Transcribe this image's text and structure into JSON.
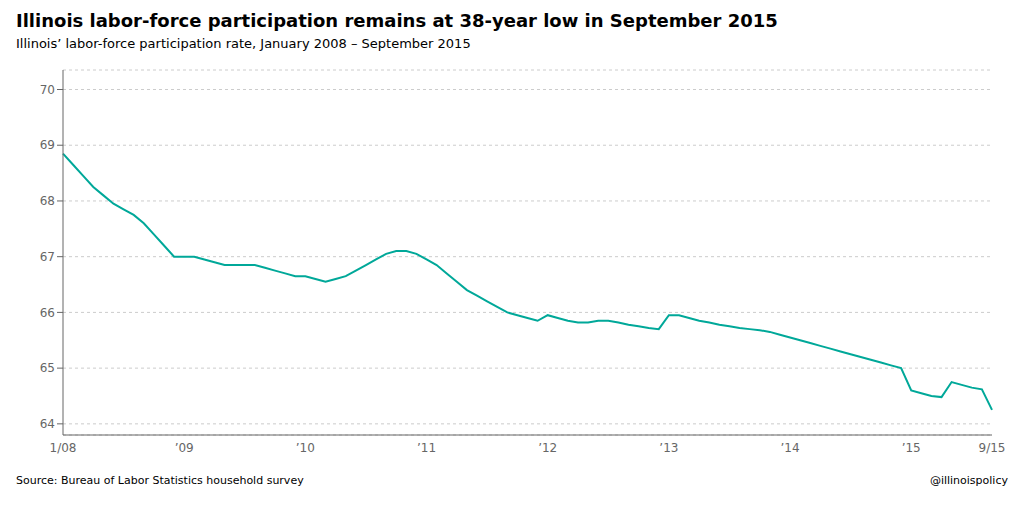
{
  "chart_data": {
    "type": "line",
    "title": "Illinois labor-force participation remains at 38-year low in September 2015",
    "subtitle": "Illinois’ labor-force participation rate, January 2008 – September 2015",
    "annotations": [
      "Source: Bureau of Labor Statistics household survey",
      "@illinoispolicy"
    ],
    "categories": [
      "1/08",
      null,
      null,
      null,
      null,
      null,
      null,
      null,
      null,
      null,
      null,
      null,
      "’09",
      null,
      null,
      null,
      null,
      null,
      null,
      null,
      null,
      null,
      null,
      null,
      "’10",
      null,
      null,
      null,
      null,
      null,
      null,
      null,
      null,
      null,
      null,
      null,
      "’11",
      null,
      null,
      null,
      null,
      null,
      null,
      null,
      null,
      null,
      null,
      null,
      "’12",
      null,
      null,
      null,
      null,
      null,
      null,
      null,
      null,
      null,
      null,
      null,
      "’13",
      null,
      null,
      null,
      null,
      null,
      null,
      null,
      null,
      null,
      null,
      null,
      "’14",
      null,
      null,
      null,
      null,
      null,
      null,
      null,
      null,
      null,
      null,
      null,
      "’15",
      null,
      null,
      null,
      null,
      null,
      null,
      null,
      "9/15"
    ],
    "values": [
      68.85,
      68.65,
      68.45,
      68.25,
      68.1,
      67.95,
      67.85,
      67.75,
      67.6,
      67.4,
      67.2,
      67.0,
      67.0,
      67.0,
      66.95,
      66.9,
      66.85,
      66.85,
      66.85,
      66.85,
      66.8,
      66.75,
      66.7,
      66.65,
      66.65,
      66.6,
      66.55,
      66.6,
      66.65,
      66.75,
      66.85,
      66.95,
      67.05,
      67.1,
      67.1,
      67.05,
      66.95,
      66.85,
      66.7,
      66.55,
      66.4,
      66.3,
      66.2,
      66.1,
      66.0,
      65.95,
      65.9,
      65.85,
      65.95,
      65.9,
      65.85,
      65.82,
      65.82,
      65.85,
      65.85,
      65.82,
      65.78,
      65.75,
      65.72,
      65.7,
      65.95,
      65.95,
      65.9,
      65.85,
      65.82,
      65.78,
      65.75,
      65.72,
      65.7,
      65.68,
      65.65,
      65.6,
      65.55,
      65.5,
      65.45,
      65.4,
      65.35,
      65.3,
      65.25,
      65.2,
      65.15,
      65.1,
      65.05,
      65.0,
      64.6,
      64.55,
      64.5,
      64.48,
      64.75,
      64.7,
      64.65,
      64.62,
      64.25
    ],
    "color": "#00A899",
    "ylim": [
      63.8,
      70.35
    ],
    "yticks": [
      64,
      65,
      66,
      67,
      68,
      69,
      70
    ],
    "grid": true
  }
}
